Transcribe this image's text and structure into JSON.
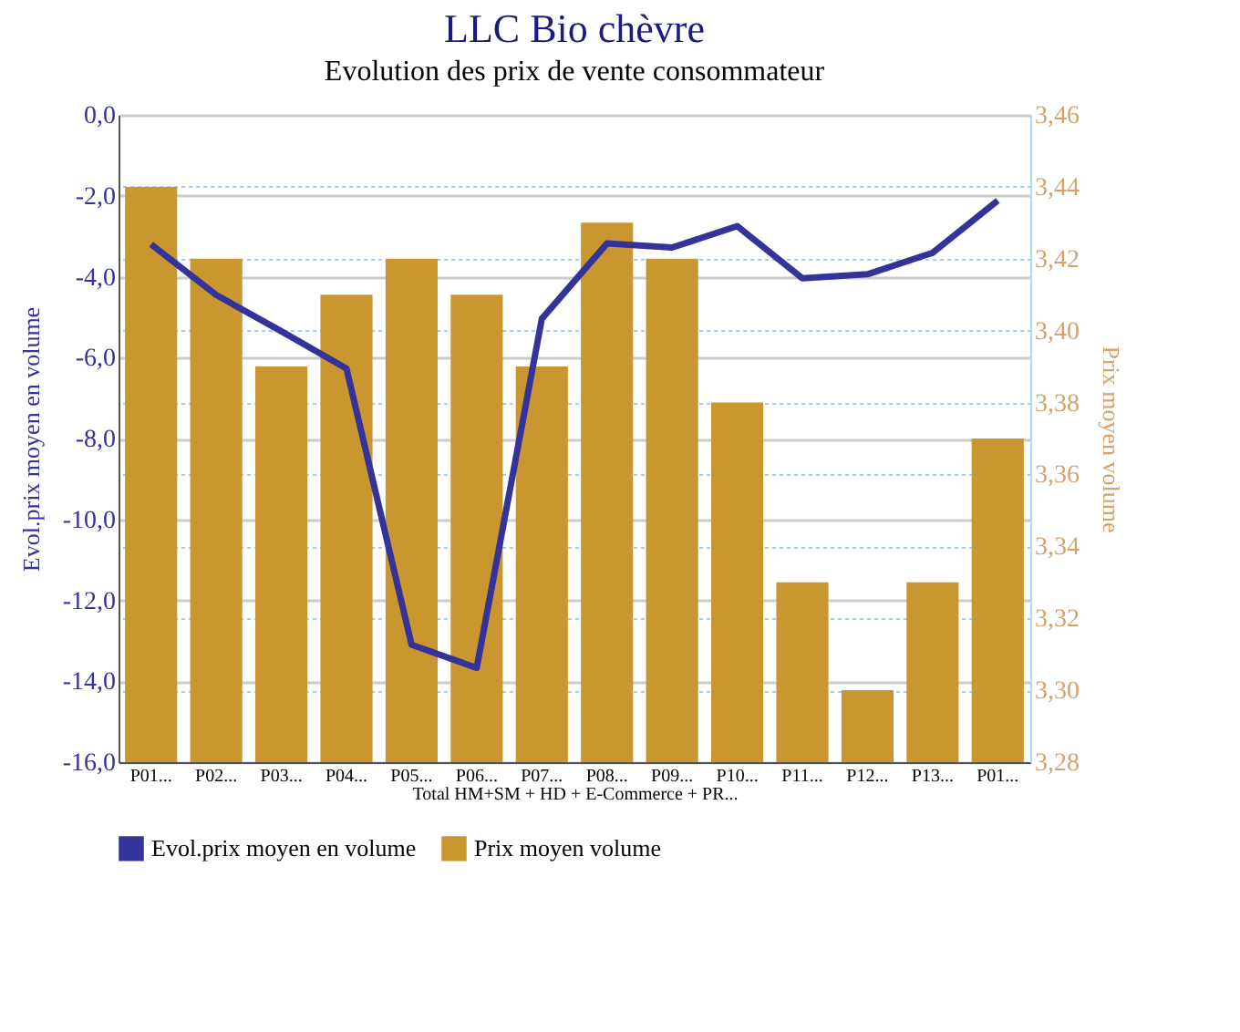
{
  "chart_data": {
    "type": "bar",
    "title": "LLC Bio chèvre",
    "subtitle": "Evolution des prix de vente consommateur",
    "categories": [
      "P01...",
      "P02...",
      "P03...",
      "P04...",
      "P05...",
      "P06...",
      "P07...",
      "P08...",
      "P09...",
      "P10...",
      "P11...",
      "P12...",
      "P13...",
      "P01..."
    ],
    "xlabel": "Total HM+SM + HD + E-Commerce + PR...",
    "ylabel": "Evol.prix moyen en volume",
    "y2label": "Prix moyen volume",
    "series": [
      {
        "name": "Evol.prix moyen en volume",
        "type": "line",
        "color": "#333399",
        "values": [
          -3.2,
          -4.45,
          -5.35,
          -6.27,
          -13.1,
          -13.67,
          -5.04,
          -3.18,
          -3.28,
          -2.75,
          -4.04,
          -3.94,
          -3.41,
          -2.12
        ]
      },
      {
        "name": "Prix moyen volume",
        "axis": "y2",
        "color": "#c9962f",
        "values": [
          3.44,
          3.42,
          3.39,
          3.41,
          3.42,
          3.41,
          3.39,
          3.43,
          3.42,
          3.38,
          3.33,
          3.3,
          3.33,
          3.37
        ]
      }
    ],
    "ylim": [
      -16,
      0
    ],
    "yticks": [
      {
        "value": -16,
        "label": "-16,0"
      },
      {
        "value": -14,
        "label": "-14,0"
      },
      {
        "value": -12,
        "label": "-12,0"
      },
      {
        "value": -10,
        "label": "-10,0"
      },
      {
        "value": -8,
        "label": "-8,0"
      },
      {
        "value": -6,
        "label": "-6,0"
      },
      {
        "value": -4,
        "label": "-4,0"
      },
      {
        "value": -2,
        "label": "-2,0"
      },
      {
        "value": 0,
        "label": "0,0"
      }
    ],
    "y2lim": [
      3.28,
      3.46
    ],
    "y2ticks": [
      {
        "value": 3.28,
        "label": "3,28"
      },
      {
        "value": 3.3,
        "label": "3,30"
      },
      {
        "value": 3.32,
        "label": "3,32"
      },
      {
        "value": 3.34,
        "label": "3,34"
      },
      {
        "value": 3.36,
        "label": "3,36"
      },
      {
        "value": 3.38,
        "label": "3,38"
      },
      {
        "value": 3.4,
        "label": "3,40"
      },
      {
        "value": 3.42,
        "label": "3,42"
      },
      {
        "value": 3.44,
        "label": "3,44"
      },
      {
        "value": 3.46,
        "label": "3,46"
      }
    ],
    "grid": "y",
    "legend": "bottom"
  }
}
